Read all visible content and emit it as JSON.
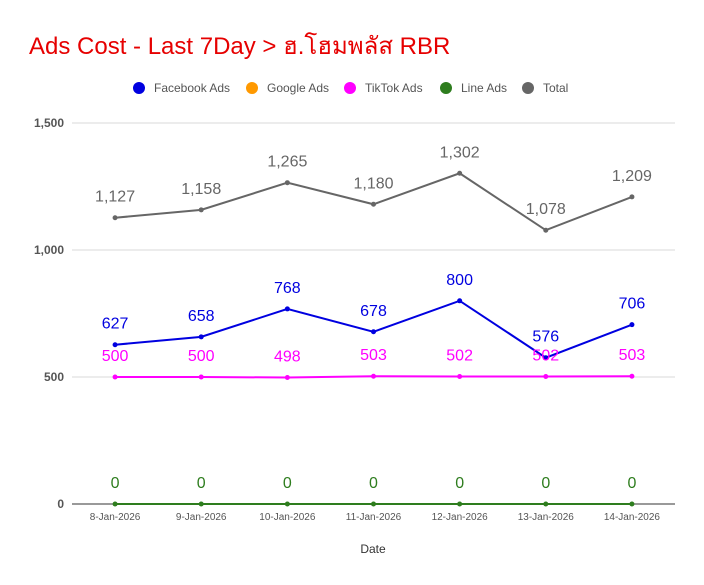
{
  "chart_data": {
    "type": "line",
    "title": "Ads Cost - Last 7Day > ฮ.โฮมพลัส RBR",
    "xlabel": "Date",
    "ylabel": "",
    "categories": [
      "8-Jan-2026",
      "9-Jan-2026",
      "10-Jan-2026",
      "11-Jan-2026",
      "12-Jan-2026",
      "13-Jan-2026",
      "14-Jan-2026"
    ],
    "ylim": [
      0,
      1500
    ],
    "yticks": [
      0,
      500,
      1000,
      1500
    ],
    "ytick_labels": [
      "0",
      "500",
      "1,000",
      "1,500"
    ],
    "grid": true,
    "legend_position": "top",
    "series": [
      {
        "name": "Facebook Ads",
        "color": "#0000e0",
        "values": [
          627,
          658,
          768,
          678,
          800,
          576,
          706
        ],
        "labels": [
          "627",
          "658",
          "768",
          "678",
          "800",
          "576",
          "706"
        ]
      },
      {
        "name": "Google Ads",
        "color": "#ff9900",
        "values": null,
        "labels": null
      },
      {
        "name": "TikTok Ads",
        "color": "#ff00ff",
        "values": [
          500,
          500,
          498,
          503,
          502,
          502,
          503
        ],
        "labels": [
          "500",
          "500",
          "498",
          "503",
          "502",
          "502",
          "503"
        ]
      },
      {
        "name": "Line Ads",
        "color": "#2e7d1e",
        "values": [
          0,
          0,
          0,
          0,
          0,
          0,
          0
        ],
        "labels": [
          "0",
          "0",
          "0",
          "0",
          "0",
          "0",
          "0"
        ]
      },
      {
        "name": "Total",
        "color": "#666666",
        "values": [
          1127,
          1158,
          1265,
          1180,
          1302,
          1078,
          1209
        ],
        "labels": [
          "1,127",
          "1,158",
          "1,265",
          "1,180",
          "1,302",
          "1,078",
          "1,209"
        ]
      }
    ]
  }
}
